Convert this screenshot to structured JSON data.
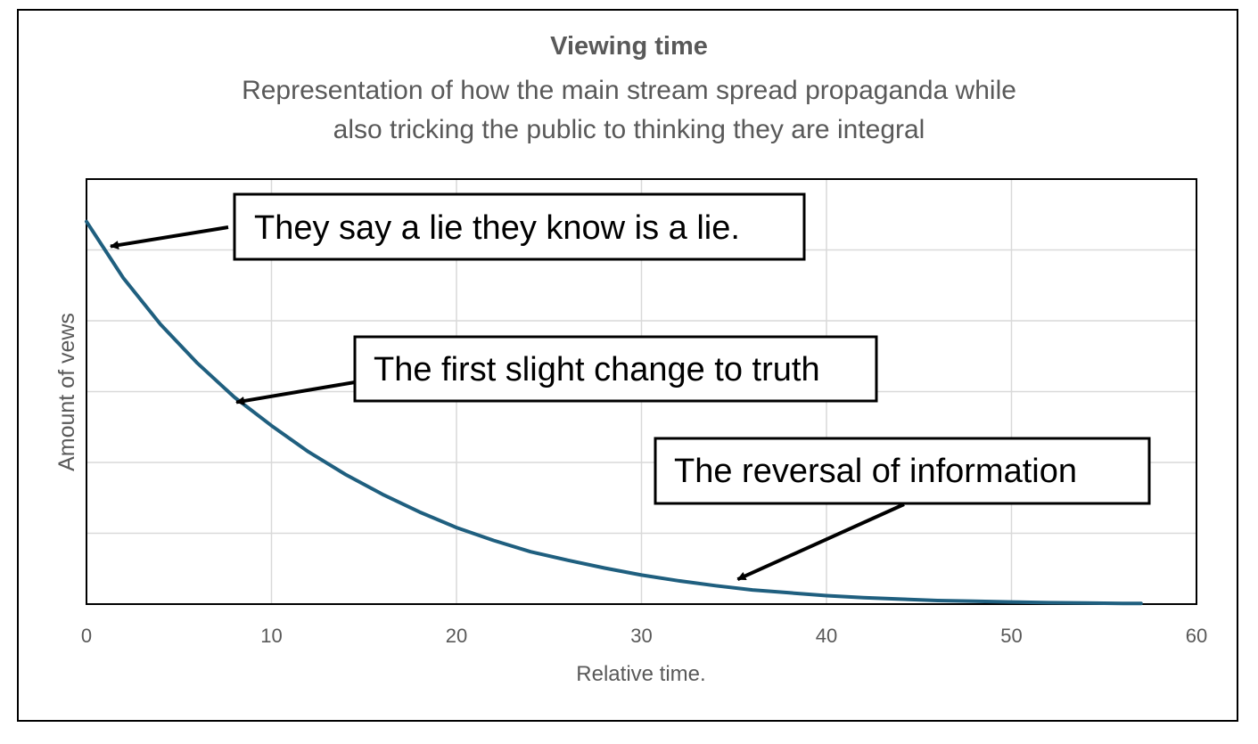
{
  "chart_data": {
    "type": "line",
    "title": "Viewing time",
    "subtitle_lines": [
      "Representation of how the main stream spread propaganda while",
      "also tricking the public to thinking they are integral"
    ],
    "xlabel": "Relative time.",
    "ylabel": "Amount  of vews",
    "xlim": [
      0,
      60
    ],
    "ylim": [
      0,
      6
    ],
    "x_ticks": [
      "0",
      "10",
      "20",
      "30",
      "40",
      "50",
      "60"
    ],
    "y_tick_labels_shown": false,
    "grid": true,
    "colors": {
      "line": "#1f5f7f",
      "grid": "#d9d9d9",
      "text": "#595959",
      "annotation": "#000000"
    },
    "series": [
      {
        "x": [
          0,
          2,
          4,
          6,
          8,
          10,
          12,
          14,
          16,
          18,
          20,
          22,
          24,
          26,
          28,
          30,
          32,
          34,
          36,
          38,
          40,
          42,
          44,
          46,
          48,
          50,
          52,
          54,
          56,
          57
        ],
        "values": [
          5.4,
          4.6,
          3.95,
          3.4,
          2.92,
          2.52,
          2.15,
          1.83,
          1.55,
          1.3,
          1.08,
          0.9,
          0.74,
          0.62,
          0.51,
          0.41,
          0.33,
          0.26,
          0.2,
          0.16,
          0.12,
          0.09,
          0.07,
          0.05,
          0.04,
          0.03,
          0.02,
          0.015,
          0.01,
          0.01
        ]
      }
    ],
    "annotations": [
      {
        "text": "They say a lie they know is a lie.",
        "points_to": [
          1.3,
          5.05
        ]
      },
      {
        "text": "The first slight change to truth",
        "points_to": [
          8.1,
          2.85
        ]
      },
      {
        "text": "The reversal of information",
        "points_to": [
          35.2,
          0.35
        ]
      }
    ]
  }
}
